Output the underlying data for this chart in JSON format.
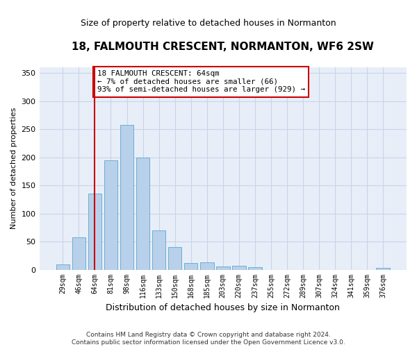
{
  "title": "18, FALMOUTH CRESCENT, NORMANTON, WF6 2SW",
  "subtitle": "Size of property relative to detached houses in Normanton",
  "xlabel": "Distribution of detached houses by size in Normanton",
  "ylabel": "Number of detached properties",
  "categories": [
    "29sqm",
    "46sqm",
    "64sqm",
    "81sqm",
    "98sqm",
    "116sqm",
    "133sqm",
    "150sqm",
    "168sqm",
    "185sqm",
    "203sqm",
    "220sqm",
    "237sqm",
    "255sqm",
    "272sqm",
    "289sqm",
    "307sqm",
    "324sqm",
    "341sqm",
    "359sqm",
    "376sqm"
  ],
  "values": [
    9,
    57,
    135,
    195,
    258,
    200,
    70,
    40,
    12,
    13,
    6,
    7,
    4,
    0,
    0,
    0,
    0,
    0,
    0,
    0,
    3
  ],
  "bar_color": "#b8d0ea",
  "bar_edge_color": "#6aaed6",
  "grid_color": "#c8d4e8",
  "background_color": "#e8eef8",
  "vline_x_idx": 2,
  "vline_color": "#cc0000",
  "annotation_line1": "18 FALMOUTH CRESCENT: 64sqm",
  "annotation_line2": "← 7% of detached houses are smaller (66)",
  "annotation_line3": "93% of semi-detached houses are larger (929) →",
  "annotation_box_color": "#ffffff",
  "annotation_box_edge": "#cc0000",
  "footer_line1": "Contains HM Land Registry data © Crown copyright and database right 2024.",
  "footer_line2": "Contains public sector information licensed under the Open Government Licence v3.0.",
  "ylim": [
    0,
    360
  ],
  "yticks": [
    0,
    50,
    100,
    150,
    200,
    250,
    300,
    350
  ]
}
